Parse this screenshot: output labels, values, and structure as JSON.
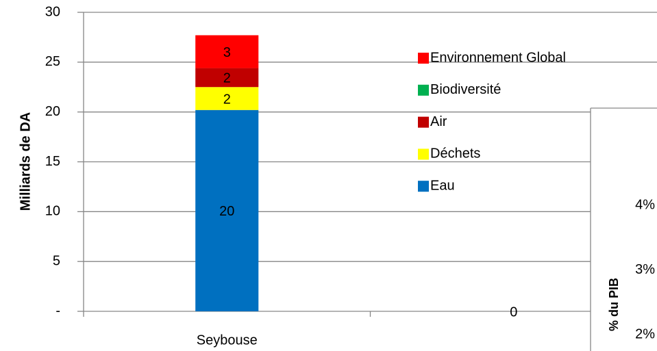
{
  "chart_data": [
    {
      "type": "bar",
      "stacked": true,
      "y_label": "Milliards de DA",
      "categories": [
        "Seybouse",
        null
      ],
      "series": [
        {
          "name": "Eau",
          "color": "#0070c0",
          "values": [
            20.2,
            0
          ],
          "value_labels": [
            "20",
            "0"
          ]
        },
        {
          "name": "Déchets",
          "color": "#ffff00",
          "values": [
            2.3,
            null
          ],
          "value_labels": [
            "2",
            null
          ]
        },
        {
          "name": "Air",
          "color": "#c00000",
          "values": [
            1.9,
            null
          ],
          "value_labels": [
            "2",
            null
          ]
        },
        {
          "name": "Biodiversité",
          "color": "#00b050",
          "values": [
            0,
            null
          ]
        },
        {
          "name": "Environnement Global",
          "color": "#ff0000",
          "values": [
            3.3,
            null
          ],
          "value_labels": [
            "3",
            null
          ]
        }
      ],
      "ylim": [
        0,
        30
      ],
      "yticks": [
        {
          "value": 0,
          "label": "-"
        },
        5,
        10,
        15,
        20,
        25,
        30
      ],
      "grid": true,
      "legend": "right"
    },
    {
      "type": "line",
      "y_label": "% du PIB",
      "ylim": [
        1.75,
        5.5
      ],
      "yticks": [
        {
          "value": 2,
          "label": "2%"
        },
        {
          "value": 3,
          "label": "3%"
        },
        {
          "value": 4,
          "label": "4%"
        }
      ]
    }
  ]
}
